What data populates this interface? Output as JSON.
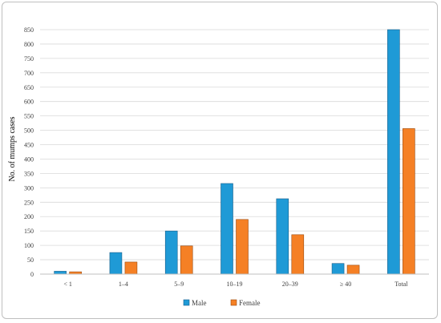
{
  "chart_data": {
    "type": "bar",
    "title": "",
    "xlabel": "",
    "ylabel": "No. of mumps cases",
    "ylim": [
      0,
      850
    ],
    "yticks": [
      0,
      50,
      100,
      150,
      200,
      250,
      300,
      350,
      400,
      450,
      500,
      550,
      600,
      650,
      700,
      750,
      800,
      850
    ],
    "grid": true,
    "legend_position": "bottom",
    "categories": [
      "< 1",
      "1–4",
      "5–9",
      "10–19",
      "20–39",
      "≥ 40",
      "Total"
    ],
    "series": [
      {
        "name": "Male",
        "color": "#1f9ad6",
        "values": [
          10,
          75,
          150,
          315,
          262,
          37,
          850
        ]
      },
      {
        "name": "Female",
        "color": "#f58025",
        "values": [
          8,
          42,
          98,
          190,
          137,
          31,
          506
        ]
      }
    ]
  }
}
